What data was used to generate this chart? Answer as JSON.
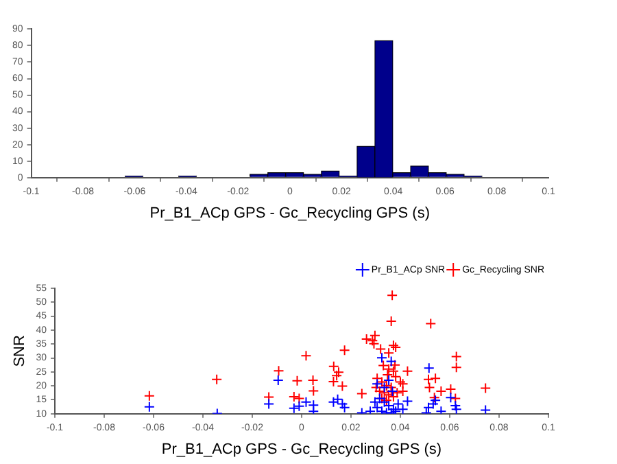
{
  "chart_data": [
    {
      "type": "histogram",
      "xlabel": "Pr_B1_ACp GPS - Gc_Recycling GPS (s)",
      "color": "#00008b",
      "bins": [
        -0.0637,
        -0.0568,
        -0.0499,
        -0.043,
        -0.0361,
        -0.0292,
        -0.0223,
        -0.0154,
        -0.0085,
        -0.0016,
        0.0053,
        0.0122,
        0.0191,
        0.026,
        0.0329,
        0.0398,
        0.0467,
        0.0536,
        0.0605,
        0.0674,
        0.0743
      ],
      "values": [
        1,
        0,
        0,
        1,
        0,
        0,
        0,
        2,
        3,
        3,
        2,
        4,
        1,
        19,
        83,
        3,
        7,
        3,
        2,
        1
      ],
      "xlim": [
        -0.1,
        0.1
      ],
      "xticks": [
        -0.1,
        -0.08,
        -0.06,
        -0.04,
        -0.02,
        0,
        0.02,
        0.04,
        0.06,
        0.08,
        0.1
      ],
      "ylim": [
        0,
        90
      ],
      "yticks": [
        0,
        10,
        20,
        30,
        40,
        50,
        60,
        70,
        80,
        90
      ],
      "grid": false
    },
    {
      "type": "scatter",
      "xlabel": "Pr_B1_ACp GPS - Gc_Recycling GPS (s)",
      "ylabel": "SNR",
      "marker": "cross",
      "legend": "top right",
      "grid": false,
      "xlim": [
        -0.1,
        0.1
      ],
      "xticks": [
        -0.1,
        -0.08,
        -0.06,
        -0.04,
        -0.02,
        0,
        0.02,
        0.04,
        0.06,
        0.08,
        0.1
      ],
      "ylim": [
        10,
        55
      ],
      "yticks": [
        10,
        15,
        20,
        25,
        30,
        35,
        40,
        45,
        50,
        55
      ],
      "series": [
        {
          "name": "Pr_B1_ACp SNR",
          "color": "#0000ff",
          "x": [
            -0.0617,
            -0.0342,
            -0.0133,
            -0.0095,
            -0.0031,
            -0.001,
            0.0018,
            0.0048,
            0.0048,
            0.0129,
            0.0146,
            0.0165,
            0.0174,
            0.0244,
            0.0306,
            0.0325,
            0.0353,
            0.0363,
            0.0316,
            0.0335,
            0.0353,
            0.0372,
            0.0325,
            0.0306,
            0.0344,
            0.0363,
            0.0381,
            0.0297,
            0.0391,
            0.041,
            0.0429,
            0.0368,
            0.0335,
            0.0278,
            0.0516,
            0.0514,
            0.0533,
            0.0542,
            0.0565,
            0.0604,
            0.0623,
            0.0627,
            0.0505,
            0.0745
          ],
          "values": [
            12.5,
            10.1,
            13.5,
            22,
            12,
            12.7,
            14.2,
            13.1,
            10.9,
            14.2,
            15.2,
            13.5,
            12.2,
            10.3,
            20.7,
            30.1,
            22,
            28.8,
            15.5,
            14.2,
            12.9,
            11.6,
            10.9,
            12.2,
            10.3,
            10.3,
            10.9,
            14.2,
            13.5,
            11.6,
            14.5,
            18.1,
            19.4,
            10.9,
            26.4,
            12.2,
            13.5,
            14.8,
            10.9,
            15.8,
            12.9,
            11.6,
            10.3,
            11.3
          ]
        },
        {
          "name": "Gc_Recycling SNR",
          "color": "#ff0000",
          "x": [
            -0.0617,
            -0.0344,
            -0.0133,
            -0.0093,
            -0.0018,
            -0.0031,
            -0.001,
            0.0018,
            0.0046,
            0.0048,
            0.013,
            0.015,
            0.0142,
            0.0129,
            0.0174,
            0.0165,
            0.0244,
            0.0263,
            0.0287,
            0.0297,
            0.0293,
            0.032,
            0.0367,
            0.0363,
            0.0372,
            0.0353,
            0.0381,
            0.0331,
            0.0353,
            0.0372,
            0.0306,
            0.0325,
            0.0344,
            0.0363,
            0.0381,
            0.04,
            0.0316,
            0.0335,
            0.0353,
            0.0372,
            0.0325,
            0.0344,
            0.0363,
            0.0387,
            0.041,
            0.0302,
            0.0429,
            0.041,
            0.0523,
            0.0514,
            0.0542,
            0.0518,
            0.0538,
            0.0565,
            0.0604,
            0.0623,
            0.0627,
            0.0627,
            0.0745,
            0.0378,
            0.0348
          ],
          "values": [
            16.4,
            22.3,
            16,
            25.4,
            21.8,
            16.1,
            15.5,
            30.8,
            22,
            18.2,
            27,
            24.9,
            23.7,
            21.5,
            32.8,
            19.9,
            17.2,
            36.8,
            36.2,
            38.1,
            35.1,
            33.2,
            52.5,
            43.2,
            34.5,
            31.8,
            33.8,
            27.3,
            26,
            25.3,
            22.7,
            21.4,
            20.1,
            19.4,
            23.3,
            21.4,
            18.1,
            17.5,
            16.8,
            16.1,
            15.5,
            14.8,
            18.1,
            17.5,
            18.1,
            19.4,
            25.3,
            20.7,
            42.3,
            22.3,
            22.7,
            19.4,
            15.8,
            18.1,
            18.8,
            15.5,
            30.5,
            26.6,
            19.2,
            27.5,
            24
          ]
        }
      ]
    }
  ]
}
